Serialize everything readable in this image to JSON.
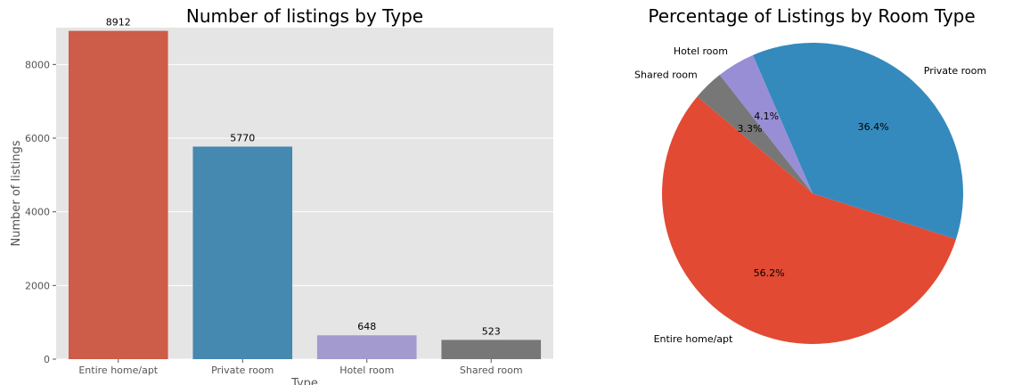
{
  "chart_data": [
    {
      "type": "bar",
      "title": "Number of listings by Type",
      "xlabel": "Type",
      "ylabel": "Number of listings",
      "categories": [
        "Entire home/apt",
        "Private room",
        "Hotel room",
        "Shared room"
      ],
      "values": [
        8912,
        5770,
        648,
        523
      ],
      "value_labels": [
        "8912",
        "5770",
        "648",
        "523"
      ],
      "colors": [
        "#cd5c48",
        "#4588b0",
        "#a39ad0",
        "#777777"
      ],
      "ylim": [
        0,
        9000
      ],
      "yticks": [
        0,
        2000,
        4000,
        6000,
        8000
      ],
      "ytick_labels": [
        "0",
        "2000",
        "4000",
        "6000",
        "8000"
      ],
      "grid": true,
      "background": "#e5e5e5"
    },
    {
      "type": "pie",
      "title": "Percentage of Listings by Room Type",
      "labels": [
        "Entire home/apt",
        "Private room",
        "Hotel room",
        "Shared room"
      ],
      "values": [
        56.2,
        36.4,
        4.1,
        3.3
      ],
      "pct_labels": [
        "56.2%",
        "36.4%",
        "4.1%",
        "3.3%"
      ],
      "colors": [
        "#e24a33",
        "#348abd",
        "#988ed5",
        "#777777"
      ],
      "start_angle_deg": 140
    }
  ]
}
